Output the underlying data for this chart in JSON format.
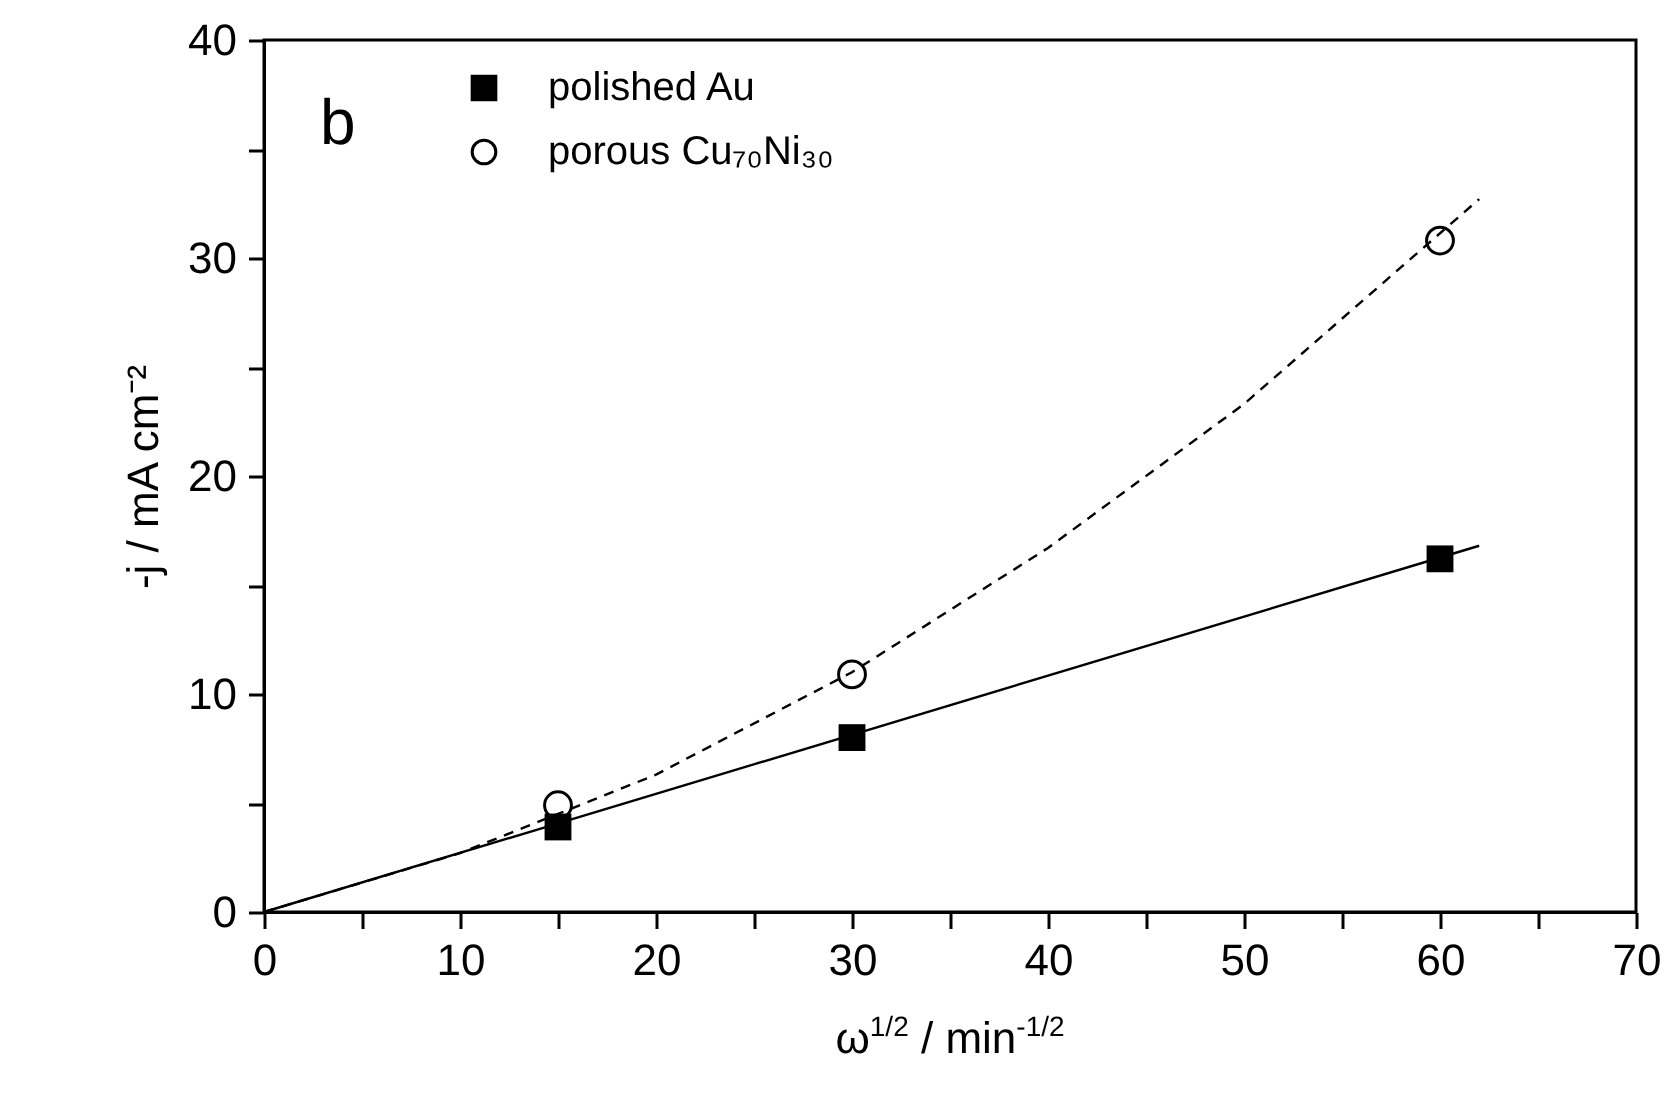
{
  "chart_data": {
    "type": "scatter",
    "xlabel": "ω$^{1/2}$ / min$^{-1/2}$",
    "ylabel": "-j / mA cm⁻²",
    "annotations": [
      "b"
    ],
    "xlim": [
      0,
      70
    ],
    "ylim": [
      0,
      40
    ],
    "xticks": [
      0,
      {
        "value": 5,
        "label": null
      },
      10,
      {
        "value": 15,
        "label": null
      },
      20,
      {
        "value": 25,
        "label": null
      },
      30,
      {
        "value": 35,
        "label": null
      },
      40,
      {
        "value": 45,
        "label": null
      },
      50,
      {
        "value": 55,
        "label": null
      },
      60,
      {
        "value": 65,
        "label": null
      },
      70
    ],
    "yticks": [
      0,
      {
        "value": 5,
        "label": null
      },
      10,
      {
        "value": 15,
        "label": null
      },
      20,
      {
        "value": 25,
        "label": null
      },
      30,
      {
        "value": 35,
        "label": null
      },
      40
    ],
    "grid": false,
    "legend": "top left",
    "series": [
      {
        "name": "polished Au",
        "color": "#000000",
        "marker": "square",
        "x": [
          15,
          30,
          60
        ],
        "values": [
          3.9,
          8.0,
          16.2
        ]
      },
      {
        "name": "porous Cu₇₀Ni₃₀",
        "color": "#000000",
        "marker": "circle",
        "x": [
          15,
          30,
          60
        ],
        "values": [
          4.9,
          10.9,
          30.8
        ]
      },
      {
        "type": "line",
        "color": "#000000",
        "marker": "none",
        "line_style": "solid",
        "x": [
          0,
          62
        ],
        "values": [
          0,
          16.8
        ]
      },
      {
        "type": "line",
        "color": "#000000",
        "marker": "none",
        "line_style": "dashed",
        "x": [
          0,
          10,
          20,
          30,
          40,
          50,
          62
        ],
        "values": [
          0,
          2.7,
          6.3,
          11.0,
          16.7,
          23.3,
          32.7
        ]
      }
    ]
  }
}
